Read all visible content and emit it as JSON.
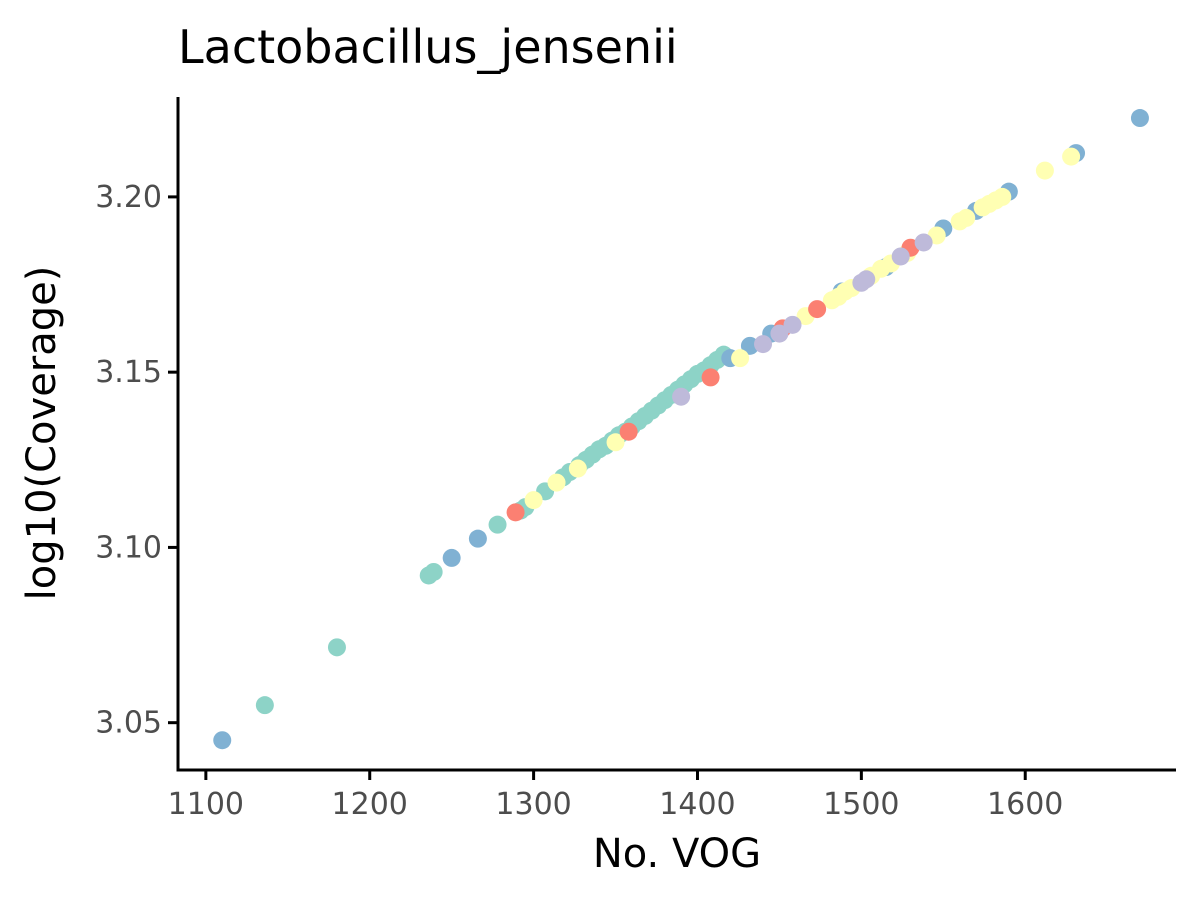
{
  "chart_data": {
    "type": "scatter",
    "title": "Lactobacillus_jensenii",
    "xlabel": "No. VOG",
    "ylabel": "log10(Coverage)",
    "xlim": [
      1083,
      1692
    ],
    "ylim": [
      3.0365,
      3.2285
    ],
    "x_ticks": [
      1100,
      1200,
      1300,
      1400,
      1500,
      1600
    ],
    "x_tick_labels": [
      "1100",
      "1200",
      "1300",
      "1400",
      "1500",
      "1600"
    ],
    "y_ticks": [
      3.05,
      3.1,
      3.15,
      3.2
    ],
    "y_tick_labels": [
      "3.05",
      "3.10",
      "3.15",
      "3.20"
    ],
    "grid": false,
    "legend": "none",
    "colors": {
      "teal": "#8dd3c7",
      "blue": "#80b1d3",
      "yellow": "#ffffb3",
      "salmon": "#fb8072",
      "lavender": "#bebada"
    },
    "series": [
      {
        "color": "#8dd3c7",
        "x": [
          1136,
          1180,
          1236,
          1239,
          1278,
          1292,
          1295,
          1307,
          1318,
          1322,
          1328,
          1332,
          1336,
          1340,
          1344,
          1348,
          1352,
          1356,
          1360,
          1364,
          1368,
          1372,
          1376,
          1380,
          1384,
          1388,
          1392,
          1396,
          1400,
          1404,
          1408,
          1412,
          1416
        ],
        "y": [
          3.055,
          3.0715,
          3.092,
          3.093,
          3.1065,
          3.1105,
          3.1115,
          3.116,
          3.12,
          3.1215,
          3.1235,
          3.125,
          3.1265,
          3.128,
          3.129,
          3.1305,
          3.132,
          3.133,
          3.1345,
          3.136,
          3.1375,
          3.139,
          3.1405,
          3.142,
          3.1435,
          3.145,
          3.1465,
          3.148,
          3.1495,
          3.1505,
          3.152,
          3.1535,
          3.155
        ]
      },
      {
        "color": "#80b1d3",
        "x": [
          1110,
          1250,
          1266,
          1420,
          1432,
          1445,
          1488,
          1515,
          1550,
          1570,
          1590,
          1631,
          1670
        ],
        "y": [
          3.045,
          3.097,
          3.1025,
          3.154,
          3.1575,
          3.161,
          3.173,
          3.18,
          3.191,
          3.196,
          3.2015,
          3.2125,
          3.2225
        ]
      },
      {
        "color": "#ffffb3",
        "x": [
          1300,
          1314,
          1327,
          1350,
          1426,
          1466,
          1482,
          1486,
          1490,
          1494,
          1506,
          1512,
          1518,
          1528,
          1546,
          1560,
          1564,
          1574,
          1578,
          1582,
          1586,
          1612,
          1628
        ],
        "y": [
          3.1135,
          3.1185,
          3.1225,
          3.13,
          3.154,
          3.166,
          3.1705,
          3.1715,
          3.173,
          3.174,
          3.1775,
          3.1795,
          3.181,
          3.184,
          3.189,
          3.193,
          3.194,
          3.197,
          3.198,
          3.199,
          3.2,
          3.2075,
          3.2115
        ]
      },
      {
        "color": "#fb8072",
        "x": [
          1289,
          1358,
          1408,
          1452,
          1473,
          1530
        ],
        "y": [
          3.11,
          3.133,
          3.1485,
          3.1625,
          3.168,
          3.1855
        ]
      },
      {
        "color": "#bebada",
        "x": [
          1390,
          1440,
          1450,
          1458,
          1500,
          1503,
          1524,
          1538
        ],
        "y": [
          3.143,
          3.158,
          3.161,
          3.1635,
          3.1755,
          3.1765,
          3.183,
          3.187
        ]
      }
    ]
  }
}
